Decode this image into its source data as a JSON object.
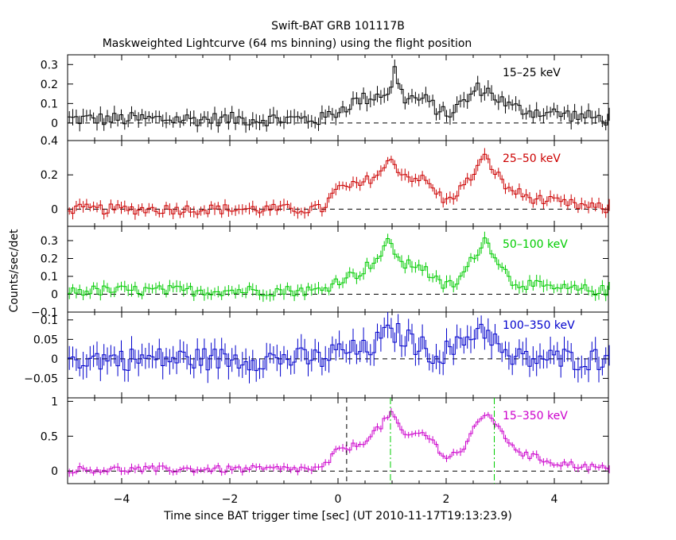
{
  "chart_data": {
    "type": "line",
    "title": "Swift-BAT GRB 101117B",
    "subtitle": "Maskweighted Lightcurve (64 ms binning) using the flight position",
    "xlabel": "Time since BAT trigger time [sec] (UT 2010-11-17T19:13:23.9)",
    "ylabel": "Counts/sec/det",
    "xlim": [
      -5,
      5
    ],
    "xticks": [
      -4,
      -2,
      0,
      2,
      4
    ],
    "bin_width": 0.064,
    "panels": [
      {
        "name": "15–25 keV",
        "color": "#000000",
        "ylim": [
          -0.09,
          0.35
        ],
        "yticks": [
          0,
          0.1,
          0.2,
          0.3
        ],
        "ytick_labels": [
          "0",
          "0.1",
          "0.2",
          "0.3"
        ],
        "key_points": [
          [
            -5,
            0.02
          ],
          [
            -0.3,
            0.02
          ],
          [
            0,
            0.06
          ],
          [
            0.3,
            0.11
          ],
          [
            0.7,
            0.14
          ],
          [
            1.0,
            0.17
          ],
          [
            1.05,
            0.28
          ],
          [
            1.2,
            0.13
          ],
          [
            1.6,
            0.12
          ],
          [
            2.0,
            0.04
          ],
          [
            2.3,
            0.1
          ],
          [
            2.6,
            0.18
          ],
          [
            2.8,
            0.16
          ],
          [
            3.2,
            0.08
          ],
          [
            3.6,
            0.06
          ],
          [
            4.0,
            0.05
          ],
          [
            5,
            0.02
          ]
        ],
        "noise": 0.035
      },
      {
        "name": "25–50 keV",
        "color": "#cc0000",
        "ylim": [
          -0.1,
          0.4
        ],
        "yticks": [
          0,
          0.2,
          0.4
        ],
        "ytick_labels": [
          "0",
          "0.2",
          "0.4"
        ],
        "key_points": [
          [
            -5,
            0.0
          ],
          [
            -0.3,
            0.0
          ],
          [
            0,
            0.12
          ],
          [
            0.4,
            0.14
          ],
          [
            0.8,
            0.22
          ],
          [
            1.0,
            0.29
          ],
          [
            1.2,
            0.2
          ],
          [
            1.6,
            0.17
          ],
          [
            2.0,
            0.04
          ],
          [
            2.4,
            0.16
          ],
          [
            2.7,
            0.3
          ],
          [
            2.8,
            0.27
          ],
          [
            3.1,
            0.13
          ],
          [
            3.5,
            0.07
          ],
          [
            4.0,
            0.04
          ],
          [
            5,
            0.0
          ]
        ],
        "noise": 0.03
      },
      {
        "name": "50–100 keV",
        "color": "#00cc00",
        "ylim": [
          -0.1,
          0.38
        ],
        "yticks": [
          -0.1,
          0,
          0.1,
          0.2,
          0.3
        ],
        "ytick_labels": [
          "−0.1",
          "0",
          "0.1",
          "0.2",
          "0.3"
        ],
        "key_points": [
          [
            -5,
            0.02
          ],
          [
            -0.3,
            0.02
          ],
          [
            0,
            0.08
          ],
          [
            0.4,
            0.12
          ],
          [
            0.8,
            0.22
          ],
          [
            0.95,
            0.3
          ],
          [
            1.2,
            0.16
          ],
          [
            1.5,
            0.17
          ],
          [
            1.9,
            0.05
          ],
          [
            2.2,
            0.06
          ],
          [
            2.5,
            0.2
          ],
          [
            2.7,
            0.31
          ],
          [
            2.85,
            0.25
          ],
          [
            3.2,
            0.07
          ],
          [
            4.0,
            0.03
          ],
          [
            5,
            0.02
          ]
        ],
        "noise": 0.03
      },
      {
        "name": "100–350 keV",
        "color": "#0000cc",
        "ylim": [
          -0.1,
          0.12
        ],
        "yticks": [
          -0.05,
          0,
          0.05,
          0.1
        ],
        "ytick_labels": [
          "−0.05",
          "0",
          "0.05",
          "0.1"
        ],
        "key_points": [
          [
            -5,
            0.0
          ],
          [
            -0.3,
            0.0
          ],
          [
            0,
            0.02
          ],
          [
            0.5,
            0.02
          ],
          [
            0.9,
            0.06
          ],
          [
            1.0,
            0.07
          ],
          [
            1.3,
            0.05
          ],
          [
            1.8,
            0.01
          ],
          [
            2.2,
            0.03
          ],
          [
            2.6,
            0.08
          ],
          [
            2.8,
            0.07
          ],
          [
            3.1,
            0.0
          ],
          [
            5,
            0.0
          ]
        ],
        "noise": 0.03
      },
      {
        "name": "15–350 keV",
        "color": "#cc00cc",
        "ylim": [
          -0.18,
          1.05
        ],
        "yticks": [
          0,
          0.5,
          1
        ],
        "ytick_labels": [
          "0",
          "0.5",
          "1"
        ],
        "key_points": [
          [
            -5,
            0.02
          ],
          [
            -0.3,
            0.03
          ],
          [
            0,
            0.3
          ],
          [
            0.4,
            0.38
          ],
          [
            0.8,
            0.65
          ],
          [
            1.0,
            0.85
          ],
          [
            1.2,
            0.5
          ],
          [
            1.6,
            0.55
          ],
          [
            2.0,
            0.2
          ],
          [
            2.3,
            0.3
          ],
          [
            2.6,
            0.7
          ],
          [
            2.8,
            0.85
          ],
          [
            3.0,
            0.55
          ],
          [
            3.4,
            0.25
          ],
          [
            4.0,
            0.12
          ],
          [
            5,
            0.03
          ]
        ],
        "noise": 0.05
      }
    ],
    "markers": [
      {
        "x": 0.16,
        "style": "dashed",
        "color": "#000000"
      },
      {
        "x": 0.97,
        "style": "dash-dot",
        "color": "#00cc00"
      },
      {
        "x": 2.89,
        "style": "dash-dot",
        "color": "#00cc00"
      }
    ]
  }
}
